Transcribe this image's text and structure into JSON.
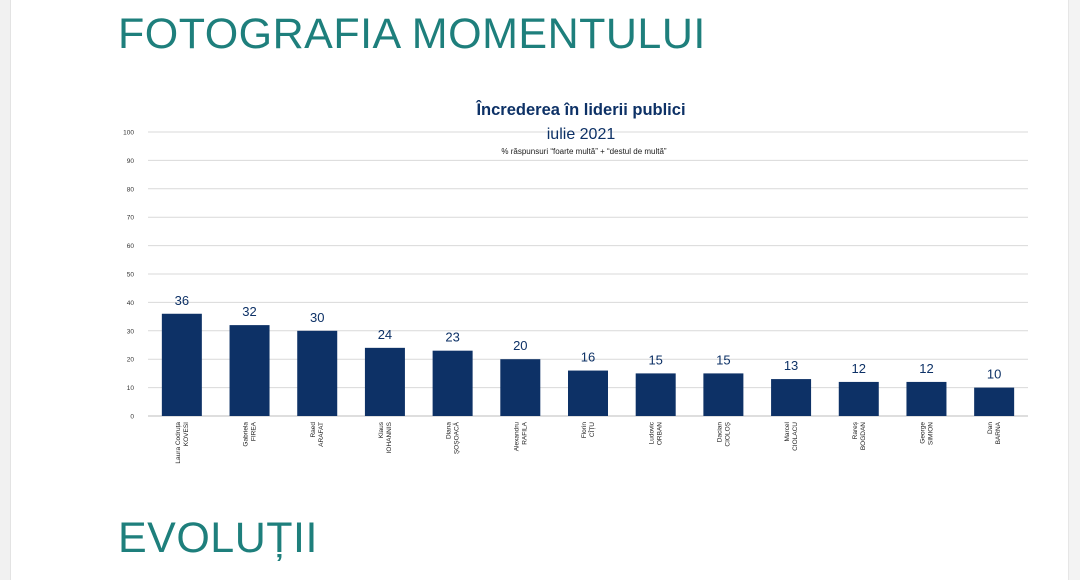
{
  "page": {
    "heading_top": "FOTOGRAFIA MOMENTULUI",
    "heading_bottom": "EVOLUȚII",
    "accent_color": "#1e7f7c"
  },
  "chart_data": {
    "type": "bar",
    "title": "Încrederea în liderii publici",
    "subtitle": "iulie 2021",
    "note": "% răspunsuri “foarte multă” + “destul de multă”",
    "xlabel": "",
    "ylabel": "",
    "ylim": [
      0,
      100
    ],
    "yticks": [
      0,
      10,
      20,
      30,
      40,
      50,
      60,
      70,
      80,
      90,
      100
    ],
    "grid": true,
    "legend": "none",
    "bar_color": "#0d3166",
    "categories": [
      [
        "Laura Codruța",
        "KOVESI"
      ],
      [
        "Gabriela",
        "FIREA"
      ],
      [
        "Raed",
        "ARAFAT"
      ],
      [
        "Klaus",
        "IOHANNIS"
      ],
      [
        "Diana",
        "ȘOȘOACĂ"
      ],
      [
        "Alexandru",
        "RAFILA"
      ],
      [
        "Florin",
        "CÎȚU"
      ],
      [
        "Ludovic",
        "ORBAN"
      ],
      [
        "Dacian",
        "CIOLOȘ"
      ],
      [
        "Marcel",
        "CIOLACU"
      ],
      [
        "Rareș",
        "BOGDAN"
      ],
      [
        "George",
        "SIMION"
      ],
      [
        "Dan",
        "BARNA"
      ]
    ],
    "values": [
      36,
      32,
      30,
      24,
      23,
      20,
      16,
      15,
      15,
      13,
      12,
      12,
      10
    ]
  }
}
